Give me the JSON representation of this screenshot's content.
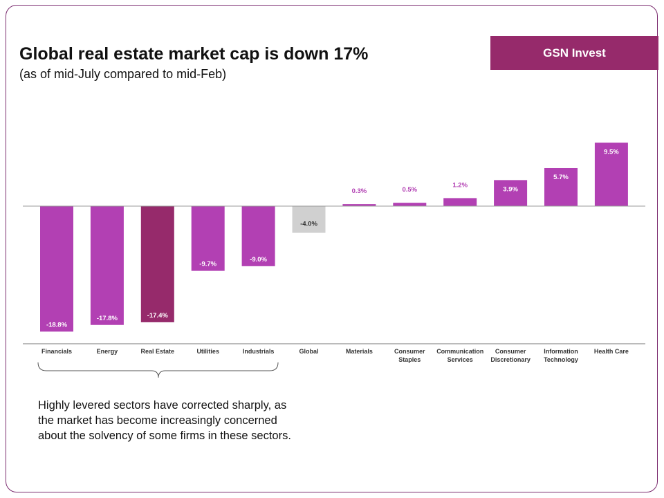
{
  "brand": {
    "name": "GSN Invest",
    "color": "#962a6b"
  },
  "colors": {
    "frame": "#7a2a6e",
    "bar": "#b240b3",
    "highlight": "#962a6b",
    "global": "#d0d0d0",
    "baseline": "#999999"
  },
  "chart_data": {
    "type": "bar",
    "title": "Global real estate market cap is down 17%",
    "subtitle": "(as of mid-July compared to mid-Feb)",
    "xlabel": "",
    "ylabel": "",
    "grid": false,
    "legend": "none",
    "ylim": [
      -20,
      10
    ],
    "categories": [
      "Financials",
      "Energy",
      "Real Estate",
      "Utilities",
      "Industrials",
      "Global",
      "Materials",
      "Consumer Staples",
      "Communication Services",
      "Consumer Discretionary",
      "Information Technology",
      "Health Care"
    ],
    "category_lines": [
      [
        "Financials"
      ],
      [
        "Energy"
      ],
      [
        "Real Estate"
      ],
      [
        "Utilities"
      ],
      [
        "Industrials"
      ],
      [
        "Global"
      ],
      [
        "Materials"
      ],
      [
        "Consumer",
        "Staples"
      ],
      [
        "Communication",
        "Services"
      ],
      [
        "Consumer",
        "Discretionary"
      ],
      [
        "Information",
        "Technology"
      ],
      [
        "Health Care"
      ]
    ],
    "values": [
      -18.8,
      -17.8,
      -17.4,
      -9.7,
      -9.0,
      -4.0,
      0.3,
      0.5,
      1.2,
      3.9,
      5.7,
      9.5
    ],
    "data_labels": [
      "-18.8%",
      "-17.8%",
      "-17.4%",
      "-9.7%",
      "-9.0%",
      "-4.0%",
      "0.3%",
      "0.5%",
      "1.2%",
      "3.9%",
      "5.7%",
      "9.5%"
    ],
    "highlight_category": "Real Estate",
    "reference_category": "Global"
  },
  "annotation": {
    "text": "Highly levered sectors have corrected sharply, as the market has become increasingly concerned about the solvency of some firms in these sectors."
  }
}
